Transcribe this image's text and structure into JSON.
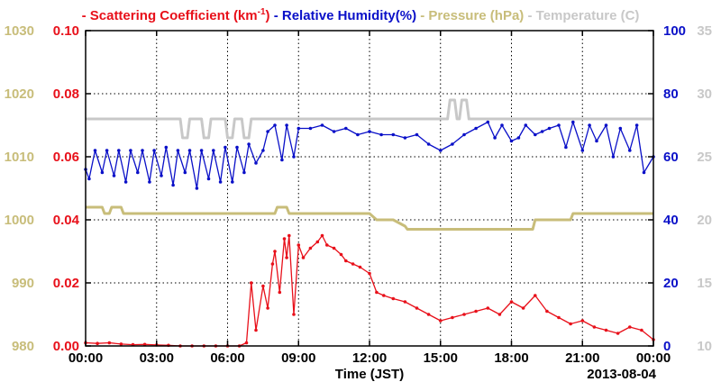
{
  "chart_data": {
    "type": "line",
    "legend_position": "top",
    "grid": true,
    "xlabel": "Time (JST)",
    "date_label": "2013-08-04",
    "x_ticks": [
      "00:00",
      "03:00",
      "06:00",
      "09:00",
      "12:00",
      "15:00",
      "18:00",
      "21:00",
      "00:00"
    ],
    "xlim": [
      0,
      24
    ],
    "axes": {
      "pressure": {
        "ticks": [
          "980",
          "990",
          "1000",
          "1010",
          "1020",
          "1030"
        ],
        "ylim": [
          980,
          1030
        ],
        "color": "#c8bd7a"
      },
      "scattering": {
        "ticks": [
          "0.00",
          "0.02",
          "0.04",
          "0.06",
          "0.08",
          "0.10"
        ],
        "ylim": [
          0,
          0.1
        ],
        "color": "#e8101a"
      },
      "humidity": {
        "ticks": [
          "0",
          "20",
          "40",
          "60",
          "80",
          "100"
        ],
        "ylim": [
          0,
          100
        ],
        "color": "#0a10c8"
      },
      "temperature": {
        "ticks": [
          "10",
          "15",
          "20",
          "25",
          "30",
          "35"
        ],
        "ylim": [
          10,
          35
        ],
        "color": "#c8c8c8"
      }
    },
    "series": [
      {
        "name_prefix": "Scattering Coefficient (km",
        "name_sup": "-1",
        "name_suffix": ")",
        "axis": "scattering",
        "color": "#e8101a",
        "x": [
          0,
          0.5,
          1,
          1.5,
          2,
          2.5,
          3,
          3.5,
          4,
          4.5,
          5,
          5.5,
          6,
          6.5,
          6.8,
          7,
          7.2,
          7.5,
          7.7,
          7.9,
          8,
          8.2,
          8.4,
          8.5,
          8.6,
          8.8,
          9,
          9.2,
          9.5,
          9.8,
          10,
          10.2,
          10.5,
          10.8,
          11,
          11.3,
          11.6,
          12,
          12.3,
          12.6,
          13,
          13.5,
          14,
          14.5,
          15,
          15.5,
          16,
          16.5,
          17,
          17.5,
          18,
          18.5,
          19,
          19.5,
          20,
          20.5,
          21,
          21.5,
          22,
          22.5,
          23,
          23.5,
          24
        ],
        "y": [
          0.001,
          0.0008,
          0.001,
          0.0006,
          0.0004,
          0.0005,
          0.0003,
          0.0002,
          0.0,
          0.0,
          0.0,
          0.0,
          0.0,
          0.0,
          0.001,
          0.02,
          0.005,
          0.019,
          0.012,
          0.026,
          0.03,
          0.017,
          0.034,
          0.028,
          0.035,
          0.01,
          0.032,
          0.028,
          0.031,
          0.033,
          0.035,
          0.032,
          0.031,
          0.029,
          0.027,
          0.026,
          0.025,
          0.023,
          0.017,
          0.016,
          0.015,
          0.014,
          0.012,
          0.01,
          0.008,
          0.009,
          0.01,
          0.011,
          0.012,
          0.01,
          0.014,
          0.012,
          0.016,
          0.011,
          0.009,
          0.007,
          0.008,
          0.006,
          0.005,
          0.004,
          0.006,
          0.005,
          0.002
        ]
      },
      {
        "name": "Relative Humidity(%)",
        "axis": "humidity",
        "color": "#0a10c8",
        "x": [
          0,
          0.15,
          0.4,
          0.7,
          0.9,
          1.2,
          1.4,
          1.7,
          1.9,
          2.2,
          2.4,
          2.7,
          2.9,
          3.2,
          3.4,
          3.7,
          3.9,
          4.2,
          4.4,
          4.7,
          4.9,
          5.2,
          5.4,
          5.7,
          5.9,
          6.2,
          6.4,
          6.7,
          6.9,
          7.2,
          7.5,
          7.7,
          8,
          8.3,
          8.5,
          8.8,
          9,
          9.5,
          10,
          10.5,
          11,
          11.5,
          12,
          12.5,
          13,
          13.5,
          14,
          14.5,
          15,
          15.5,
          16,
          16.5,
          17,
          17.3,
          17.6,
          18,
          18.3,
          18.6,
          19,
          19.3,
          19.6,
          20,
          20.3,
          20.6,
          21,
          21.3,
          21.6,
          22,
          22.3,
          22.6,
          23,
          23.3,
          23.6,
          24
        ],
        "y": [
          56,
          53,
          62,
          55,
          62,
          54,
          62,
          52,
          62,
          55,
          62,
          52,
          62,
          54,
          63,
          51,
          62,
          55,
          62,
          50,
          62,
          53,
          62,
          52,
          63,
          52,
          63,
          55,
          64,
          58,
          62,
          68,
          70,
          59,
          70,
          60,
          69,
          69,
          70,
          68,
          69,
          67,
          68,
          67,
          67,
          66,
          67,
          64,
          62,
          64,
          67,
          69,
          71,
          66,
          70,
          65,
          66,
          70,
          67,
          68,
          69,
          70,
          63,
          71,
          62,
          70,
          65,
          70,
          60,
          69,
          62,
          70,
          55,
          60
        ]
      },
      {
        "name": "Pressure (hPa)",
        "axis": "pressure",
        "color": "#c8bd7a",
        "x": [
          0,
          0.7,
          0.8,
          1.0,
          1.1,
          1.5,
          1.6,
          2.0,
          8.0,
          8.1,
          8.5,
          8.6,
          9.0,
          12.0,
          12.3,
          13.0,
          13.5,
          13.6,
          15.0,
          18.0,
          18.9,
          19.0,
          20.5,
          20.6,
          24.0
        ],
        "y": [
          1002,
          1002,
          1001,
          1001,
          1002,
          1002,
          1001,
          1001,
          1001,
          1002,
          1002,
          1001,
          1001,
          1001,
          1000,
          1000,
          999,
          998.5,
          998.5,
          998.5,
          998.5,
          1000,
          1000,
          1001,
          1001
        ]
      },
      {
        "name": "Temperature (C)",
        "axis": "temperature",
        "color": "#c8c8c8",
        "x": [
          0,
          4.0,
          4.1,
          4.3,
          4.4,
          4.9,
          5.0,
          5.2,
          5.3,
          5.9,
          6.0,
          6.2,
          6.3,
          6.6,
          6.7,
          6.9,
          7.0,
          7.4,
          7.5,
          15.3,
          15.4,
          15.6,
          15.7,
          15.8,
          15.9,
          16.1,
          16.2,
          16.5,
          16.6,
          24.0
        ],
        "y": [
          28,
          28,
          26.5,
          26.5,
          28,
          28,
          26.5,
          26.5,
          28,
          28,
          26.5,
          26.5,
          28,
          28,
          26.5,
          26.5,
          28,
          28,
          28,
          28,
          29.5,
          29.5,
          28,
          28,
          29.5,
          29.5,
          28,
          28,
          28,
          28
        ]
      }
    ]
  }
}
